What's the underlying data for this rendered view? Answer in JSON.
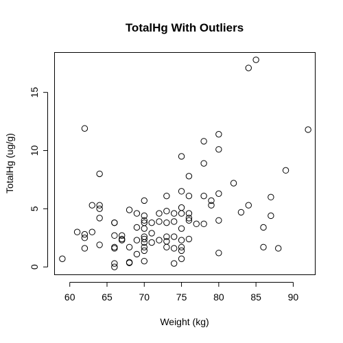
{
  "chart_data": {
    "type": "scatter",
    "title": "TotalHg With Outliers",
    "xlabel": "Weight (kg)",
    "ylabel": "TotalHg (ug/g)",
    "xlim": [
      58,
      93
    ],
    "ylim": [
      -0.7,
      18.4
    ],
    "xticks": [
      60,
      65,
      70,
      75,
      80,
      85,
      90
    ],
    "yticks": [
      0,
      5,
      10,
      15
    ],
    "xtick_labels": [
      "60",
      "65",
      "70",
      "75",
      "80",
      "85",
      "90"
    ],
    "ytick_labels": [
      "0",
      "5",
      "10",
      "15"
    ],
    "grid": false,
    "points": [
      [
        59,
        0.7
      ],
      [
        61,
        3.0
      ],
      [
        62,
        11.9
      ],
      [
        62,
        2.8
      ],
      [
        62,
        2.5
      ],
      [
        62,
        1.6
      ],
      [
        63,
        5.3
      ],
      [
        63,
        3.0
      ],
      [
        64,
        8.0
      ],
      [
        64,
        5.3
      ],
      [
        64,
        5.0
      ],
      [
        64,
        4.2
      ],
      [
        64,
        1.9
      ],
      [
        66,
        3.8
      ],
      [
        66,
        3.8
      ],
      [
        66,
        2.7
      ],
      [
        66,
        1.7
      ],
      [
        66,
        1.6
      ],
      [
        66,
        0.3
      ],
      [
        66,
        0.0
      ],
      [
        67,
        2.7
      ],
      [
        67,
        2.4
      ],
      [
        67,
        2.3
      ],
      [
        68,
        4.9
      ],
      [
        68,
        1.7
      ],
      [
        68,
        0.4
      ],
      [
        68,
        0.35
      ],
      [
        69,
        4.6
      ],
      [
        69,
        3.4
      ],
      [
        69,
        2.3
      ],
      [
        69,
        1.1
      ],
      [
        70,
        5.7
      ],
      [
        70,
        4.4
      ],
      [
        70,
        4.0
      ],
      [
        70,
        3.8
      ],
      [
        70,
        3.3
      ],
      [
        70,
        2.6
      ],
      [
        70,
        2.4
      ],
      [
        70,
        2.1
      ],
      [
        70,
        1.7
      ],
      [
        70,
        1.4
      ],
      [
        70,
        0.5
      ],
      [
        71,
        3.8
      ],
      [
        71,
        2.9
      ],
      [
        71,
        2.1
      ],
      [
        72,
        4.6
      ],
      [
        72,
        3.9
      ],
      [
        72,
        2.3
      ],
      [
        73,
        6.1
      ],
      [
        73,
        4.8
      ],
      [
        73,
        3.8
      ],
      [
        73,
        2.6
      ],
      [
        73,
        2.2
      ],
      [
        73,
        1.7
      ],
      [
        74,
        4.6
      ],
      [
        74,
        3.9
      ],
      [
        74,
        2.6
      ],
      [
        74,
        1.6
      ],
      [
        74,
        0.3
      ],
      [
        75,
        9.5
      ],
      [
        75,
        6.5
      ],
      [
        75,
        5.1
      ],
      [
        75,
        4.6
      ],
      [
        75,
        3.3
      ],
      [
        75,
        2.3
      ],
      [
        75,
        1.7
      ],
      [
        75,
        1.4
      ],
      [
        75,
        0.7
      ],
      [
        76,
        7.8
      ],
      [
        76,
        6.1
      ],
      [
        76,
        4.6
      ],
      [
        76,
        4.2
      ],
      [
        76,
        4.0
      ],
      [
        76,
        2.4
      ],
      [
        77,
        3.7
      ],
      [
        78,
        10.8
      ],
      [
        78,
        8.9
      ],
      [
        78,
        6.1
      ],
      [
        78,
        3.7
      ],
      [
        79,
        5.7
      ],
      [
        79,
        5.3
      ],
      [
        80,
        11.4
      ],
      [
        80,
        10.1
      ],
      [
        80,
        6.3
      ],
      [
        80,
        4.0
      ],
      [
        80,
        1.2
      ],
      [
        82,
        7.2
      ],
      [
        83,
        4.7
      ],
      [
        84,
        17.1
      ],
      [
        84,
        5.3
      ],
      [
        85,
        17.8
      ],
      [
        86,
        3.4
      ],
      [
        86,
        1.7
      ],
      [
        87,
        6.0
      ],
      [
        87,
        4.4
      ],
      [
        88,
        1.6
      ],
      [
        89,
        8.3
      ],
      [
        92,
        11.8
      ]
    ]
  }
}
